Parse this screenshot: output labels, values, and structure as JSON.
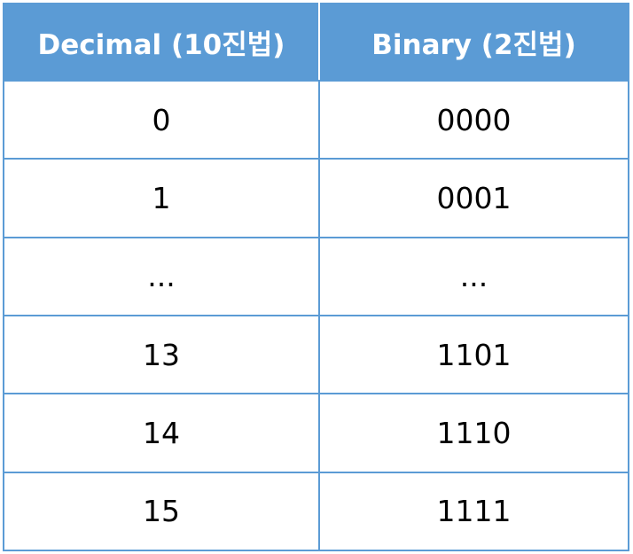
{
  "table": {
    "headers": [
      "Decimal (10진법)",
      "Binary (2진법)"
    ],
    "rows": [
      [
        "0",
        "0000"
      ],
      [
        "1",
        "0001"
      ],
      [
        "...",
        "..."
      ],
      [
        "13",
        "1101"
      ],
      [
        "14",
        "1110"
      ],
      [
        "15",
        "1111"
      ]
    ]
  },
  "colors": {
    "header_bg": "#5b9bd5",
    "header_text": "#ffffff",
    "border": "#5b9bd5"
  }
}
